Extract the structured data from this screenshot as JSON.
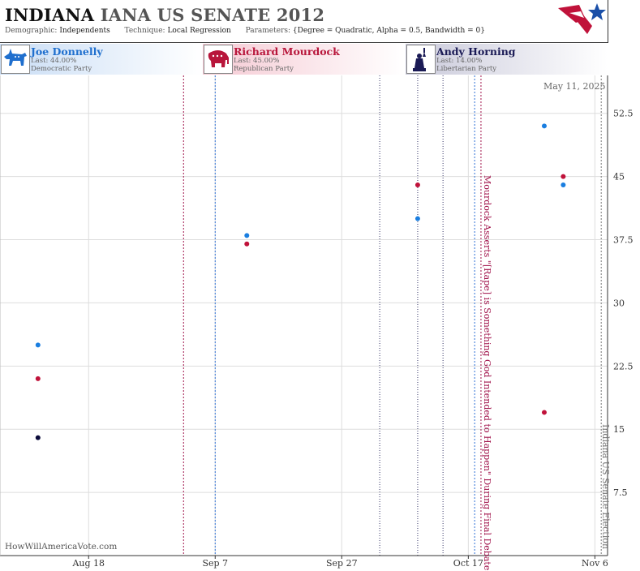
{
  "header": {
    "title_state": "INDIANA",
    "title_rest": "IANA US SENATE 2012",
    "demographic_key": "Demographic:",
    "demographic_val": "Independents",
    "technique_key": "Technique:",
    "technique_val": "Local Regression",
    "params_key": "Parameters:",
    "params_val": "{Degree = Quadratic, Alpha = 0.5, Bandwidth = 0}"
  },
  "candidates": [
    {
      "name": "Joe Donnelly",
      "last": "Last: 44.00%",
      "party": "Democratic Party",
      "color": "#1f6fce",
      "icon": "donkey-icon"
    },
    {
      "name": "Richard Mourdock",
      "last": "Last: 45.00%",
      "party": "Republican Party",
      "color": "#b8163b",
      "icon": "elephant-icon"
    },
    {
      "name": "Andy Horning",
      "last": "Last: 14.00%",
      "party": "Libertarian Party",
      "color": "#1a1a55",
      "icon": "liberty-icon"
    }
  ],
  "datestamp": "May 11, 2025",
  "site": "HowWillAmericaVote.com",
  "colors": {
    "dem": "#1a7ee0",
    "rep": "#c0123a",
    "lib": "#0a0a3a",
    "grid": "#dddddd",
    "event": "#a0124a",
    "election": "#777777",
    "accent_blue": "#1a4fa8"
  },
  "chart_data": {
    "type": "scatter",
    "x_axis": {
      "ticks": [
        "Aug 18",
        "Sep 7",
        "Sep 27",
        "Oct 17",
        "Nov 6"
      ],
      "range": [
        "2012-08-04",
        "2012-11-08"
      ]
    },
    "y_axis": {
      "ticks": [
        "7.5",
        "15",
        "22.5",
        "30",
        "37.5",
        "45",
        "52.5"
      ],
      "range": [
        0,
        57
      ]
    },
    "grid": true,
    "series": [
      {
        "name": "Joe Donnelly",
        "color": "#1a7ee0",
        "points": [
          {
            "x": "2012-08-10",
            "y": 25
          },
          {
            "x": "2012-09-12",
            "y": 38
          },
          {
            "x": "2012-10-09",
            "y": 40
          },
          {
            "x": "2012-10-29",
            "y": 51
          },
          {
            "x": "2012-11-01",
            "y": 44
          }
        ]
      },
      {
        "name": "Richard Mourdock",
        "color": "#c0123a",
        "points": [
          {
            "x": "2012-08-10",
            "y": 21
          },
          {
            "x": "2012-09-12",
            "y": 37
          },
          {
            "x": "2012-10-09",
            "y": 44
          },
          {
            "x": "2012-10-29",
            "y": 17
          },
          {
            "x": "2012-11-01",
            "y": 45
          }
        ]
      },
      {
        "name": "Andy Horning",
        "color": "#0a0a3a",
        "points": [
          {
            "x": "2012-08-10",
            "y": 14
          }
        ]
      }
    ],
    "event_lines": [
      {
        "x": "2012-09-02",
        "style": "rep"
      },
      {
        "x": "2012-09-07",
        "style": "dem"
      },
      {
        "x": "2012-10-03",
        "style": "neutral"
      },
      {
        "x": "2012-10-09",
        "style": "neutral"
      },
      {
        "x": "2012-10-13",
        "style": "neutral"
      },
      {
        "x": "2012-10-18",
        "style": "dem"
      },
      {
        "x": "2012-10-19",
        "style": "rep"
      },
      {
        "x": "2012-11-07",
        "style": "election"
      }
    ],
    "annotations": [
      {
        "text": "Mourdock Asserts \"[Rape] is Something God Intended to Happen\" During Final Debate",
        "x": "2012-10-19",
        "color": "#a0124a"
      },
      {
        "text": "Indiana US Senate Election",
        "x": "2012-11-07",
        "color": "#777777"
      }
    ]
  }
}
